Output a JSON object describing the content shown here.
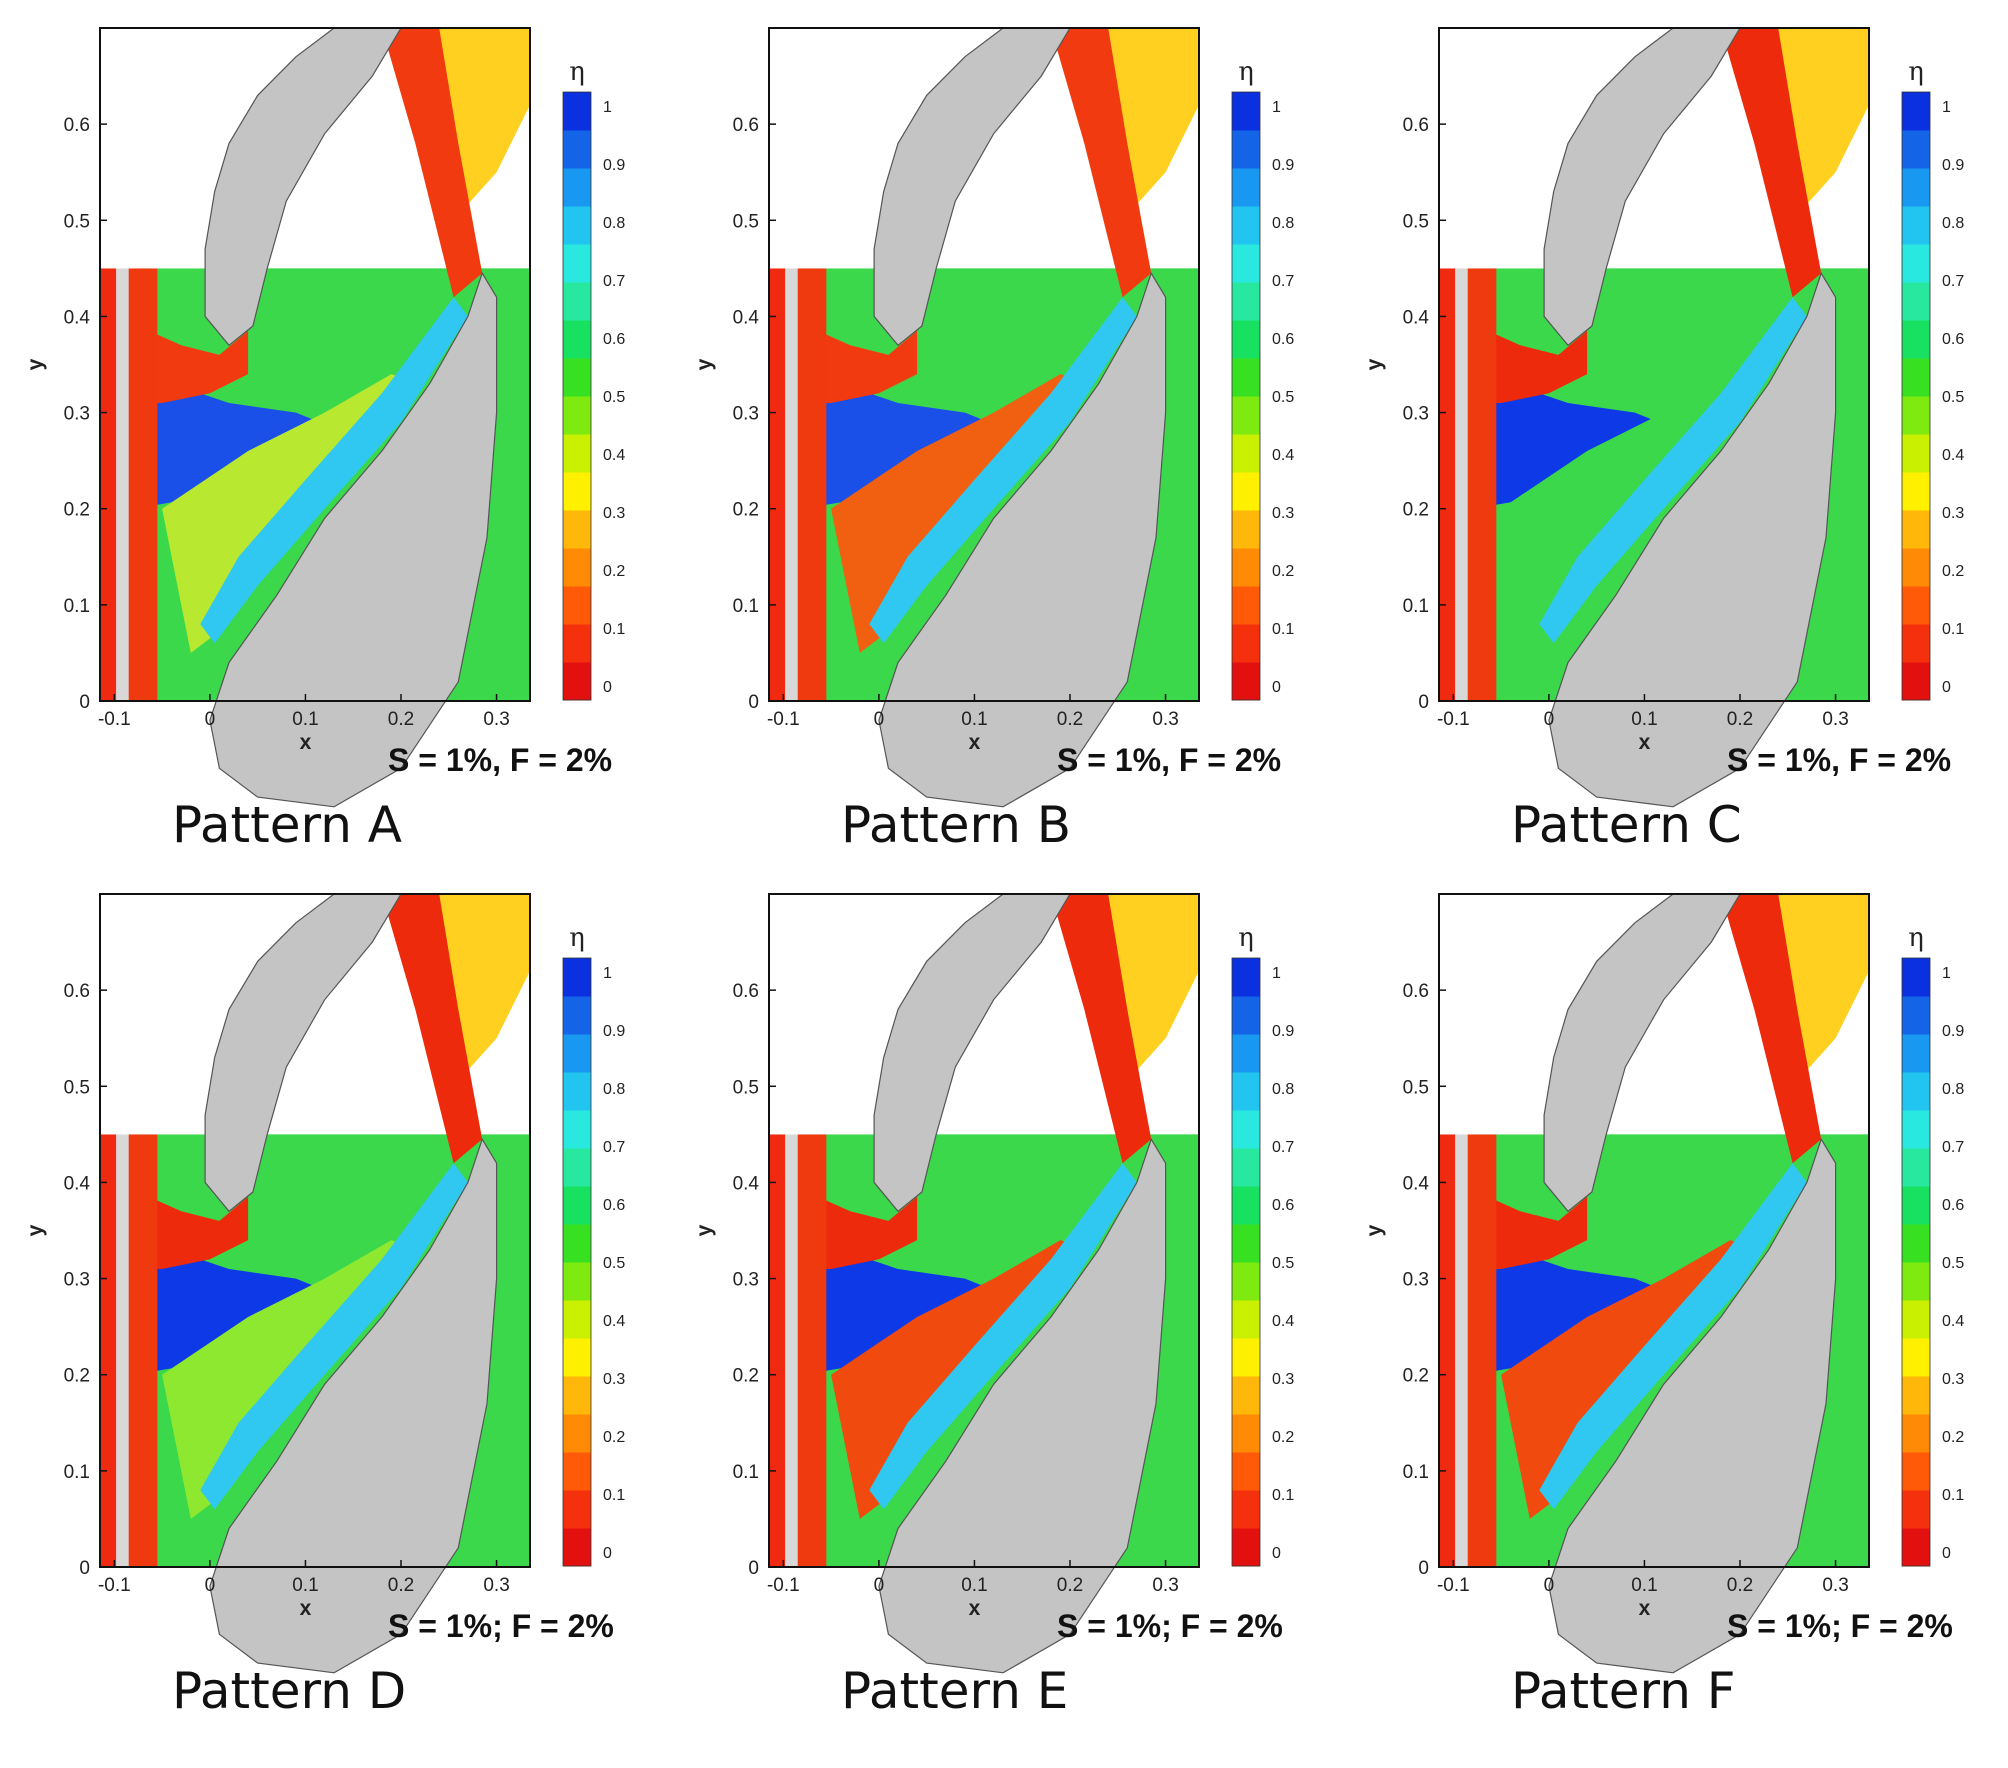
{
  "chart_data": {
    "type": "contour",
    "colorbar": {
      "label": "η",
      "ticks": [
        "0",
        "0.1",
        "0.2",
        "0.3",
        "0.4",
        "0.5",
        "0.6",
        "0.7",
        "0.8",
        "0.9",
        "1"
      ],
      "range": [
        0,
        1
      ],
      "colors": [
        "#e31010",
        "#f5300c",
        "#ff5a08",
        "#ff8a06",
        "#ffb80a",
        "#fff000",
        "#c8f000",
        "#7eea10",
        "#37e020",
        "#18e060",
        "#28e8a0",
        "#28e8e0",
        "#22c4f0",
        "#1898f0",
        "#1464e8",
        "#0a30e0"
      ]
    },
    "x_axis": {
      "label": "x",
      "ticks": [
        "-0.1",
        "0",
        "0.1",
        "0.2",
        "0.3"
      ],
      "range": [
        -0.115,
        0.335
      ]
    },
    "y_axis": {
      "label": "y",
      "ticks": [
        "0",
        "0.1",
        "0.2",
        "0.3",
        "0.4",
        "0.5",
        "0.6"
      ],
      "range": [
        0,
        0.7
      ]
    },
    "panels": [
      {
        "id": "A",
        "title": "Pattern A",
        "params": "S = 1%, F = 2%",
        "core_color": "#1a4fe8",
        "wake_color": "#b8e830",
        "slot_color": "#f23a10"
      },
      {
        "id": "B",
        "title": "Pattern B",
        "params": "S = 1%, F = 2%",
        "core_color": "#1a4fe8",
        "wake_color": "#f06010",
        "slot_color": "#f23a10"
      },
      {
        "id": "C",
        "title": "Pattern C",
        "params": "S = 1%, F = 2%",
        "core_color": "#0d3ae6",
        "wake_color": "#3ad84a",
        "slot_color": "#ee2a0c"
      },
      {
        "id": "D",
        "title": "Pattern D",
        "params": "S = 1%; F = 2%",
        "core_color": "#0d3ae6",
        "wake_color": "#8fe830",
        "slot_color": "#ee2a0c"
      },
      {
        "id": "E",
        "title": "Pattern E",
        "params": "S = 1%; F = 2%",
        "core_color": "#0d3ae6",
        "wake_color": "#f04a0e",
        "slot_color": "#ee2a0c"
      },
      {
        "id": "F",
        "title": "Pattern F",
        "params": "S = 1%; F = 2%",
        "core_color": "#0d3ae6",
        "wake_color": "#f04a0e",
        "slot_color": "#ee2a0c"
      }
    ]
  }
}
